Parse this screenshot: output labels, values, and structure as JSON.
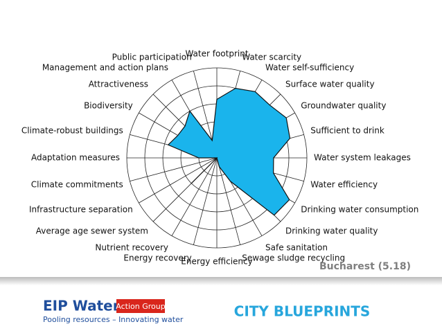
{
  "chart_data": {
    "type": "radar",
    "categories": [
      "Water footprint",
      "Water scarcity",
      "Water self-sufficiency",
      "Surface water quality",
      "Groundwater quality",
      "Sufficient to drink",
      "Water system leakages",
      "Water efficiency",
      "Drinking water consumption",
      "Drinking water quality",
      "Safe sanitation",
      "Sewage sludge recycling",
      "Energy efficiency",
      "Energy recovery",
      "Nutrient recovery",
      "Average age sewer system",
      "Infrastructure separation",
      "Climate commitments",
      "Adaptation measures",
      "Climate-robust buildings",
      "Biodiversity",
      "Attractiveness",
      "Management and action plans",
      "Public participation"
    ],
    "values": [
      6.5,
      8,
      8.5,
      8.3,
      8.9,
      8.4,
      6.3,
      6.5,
      9.3,
      9,
      3,
      1,
      0,
      0,
      0,
      4,
      0,
      0,
      2,
      5.6,
      5,
      5,
      6,
      2
    ],
    "color": "#1ab4ec",
    "ylim": [
      0,
      10
    ],
    "yticks": [
      2,
      4,
      6,
      8,
      10
    ],
    "grid": true,
    "annotation": "Bucharest (5.18)"
  },
  "footer": {
    "logo": "EIP Water",
    "badge": "Action Group",
    "tagline": "Pooling resources – Innovating water",
    "title": "CITY BLUEPRINTS"
  }
}
